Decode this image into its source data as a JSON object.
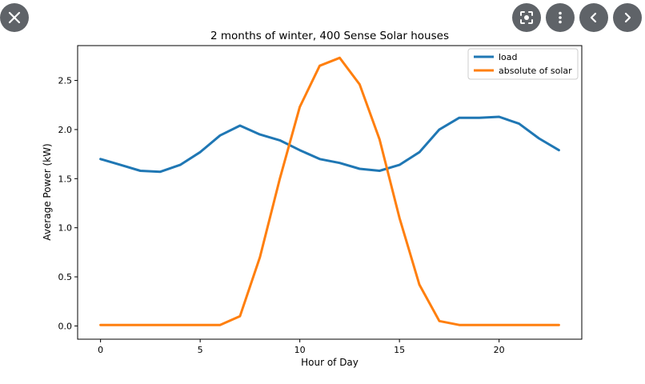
{
  "overlay": {
    "close_icon": "close-icon",
    "lens_icon": "lens-icon",
    "more_icon": "more-vert-icon",
    "prev_icon": "chevron-left-icon",
    "next_icon": "chevron-right-icon"
  },
  "chart_data": {
    "type": "line",
    "title": "2 months of winter, 400 Sense Solar houses",
    "xlabel": "Hour of Day",
    "ylabel": "Average Power (kW)",
    "xlim": [
      -1.15,
      24.15
    ],
    "ylim": [
      -0.135,
      2.855
    ],
    "xticks": [
      0,
      5,
      10,
      15,
      20
    ],
    "xtick_labels": [
      "0",
      "5",
      "10",
      "15",
      "20"
    ],
    "yticks": [
      0.0,
      0.5,
      1.0,
      1.5,
      2.0,
      2.5
    ],
    "ytick_labels": [
      "0.0",
      "0.5",
      "1.0",
      "1.5",
      "2.0",
      "2.5"
    ],
    "legend_position": "top-right",
    "x": [
      0,
      1,
      2,
      3,
      4,
      5,
      6,
      7,
      8,
      9,
      10,
      11,
      12,
      13,
      14,
      15,
      16,
      17,
      18,
      19,
      20,
      21,
      22,
      23
    ],
    "series": [
      {
        "name": "load",
        "color": "#1f77b4",
        "values": [
          1.7,
          1.64,
          1.58,
          1.57,
          1.64,
          1.77,
          1.94,
          2.04,
          1.95,
          1.89,
          1.79,
          1.7,
          1.66,
          1.6,
          1.58,
          1.64,
          1.77,
          2.0,
          2.12,
          2.12,
          2.13,
          2.06,
          1.91,
          1.79
        ]
      },
      {
        "name": "absolute of solar",
        "color": "#ff7f0e",
        "values": [
          0.01,
          0.01,
          0.01,
          0.01,
          0.01,
          0.01,
          0.01,
          0.1,
          0.7,
          1.5,
          2.23,
          2.65,
          2.73,
          2.46,
          1.9,
          1.1,
          0.42,
          0.05,
          0.01,
          0.01,
          0.01,
          0.01,
          0.01,
          0.01
        ]
      }
    ]
  }
}
